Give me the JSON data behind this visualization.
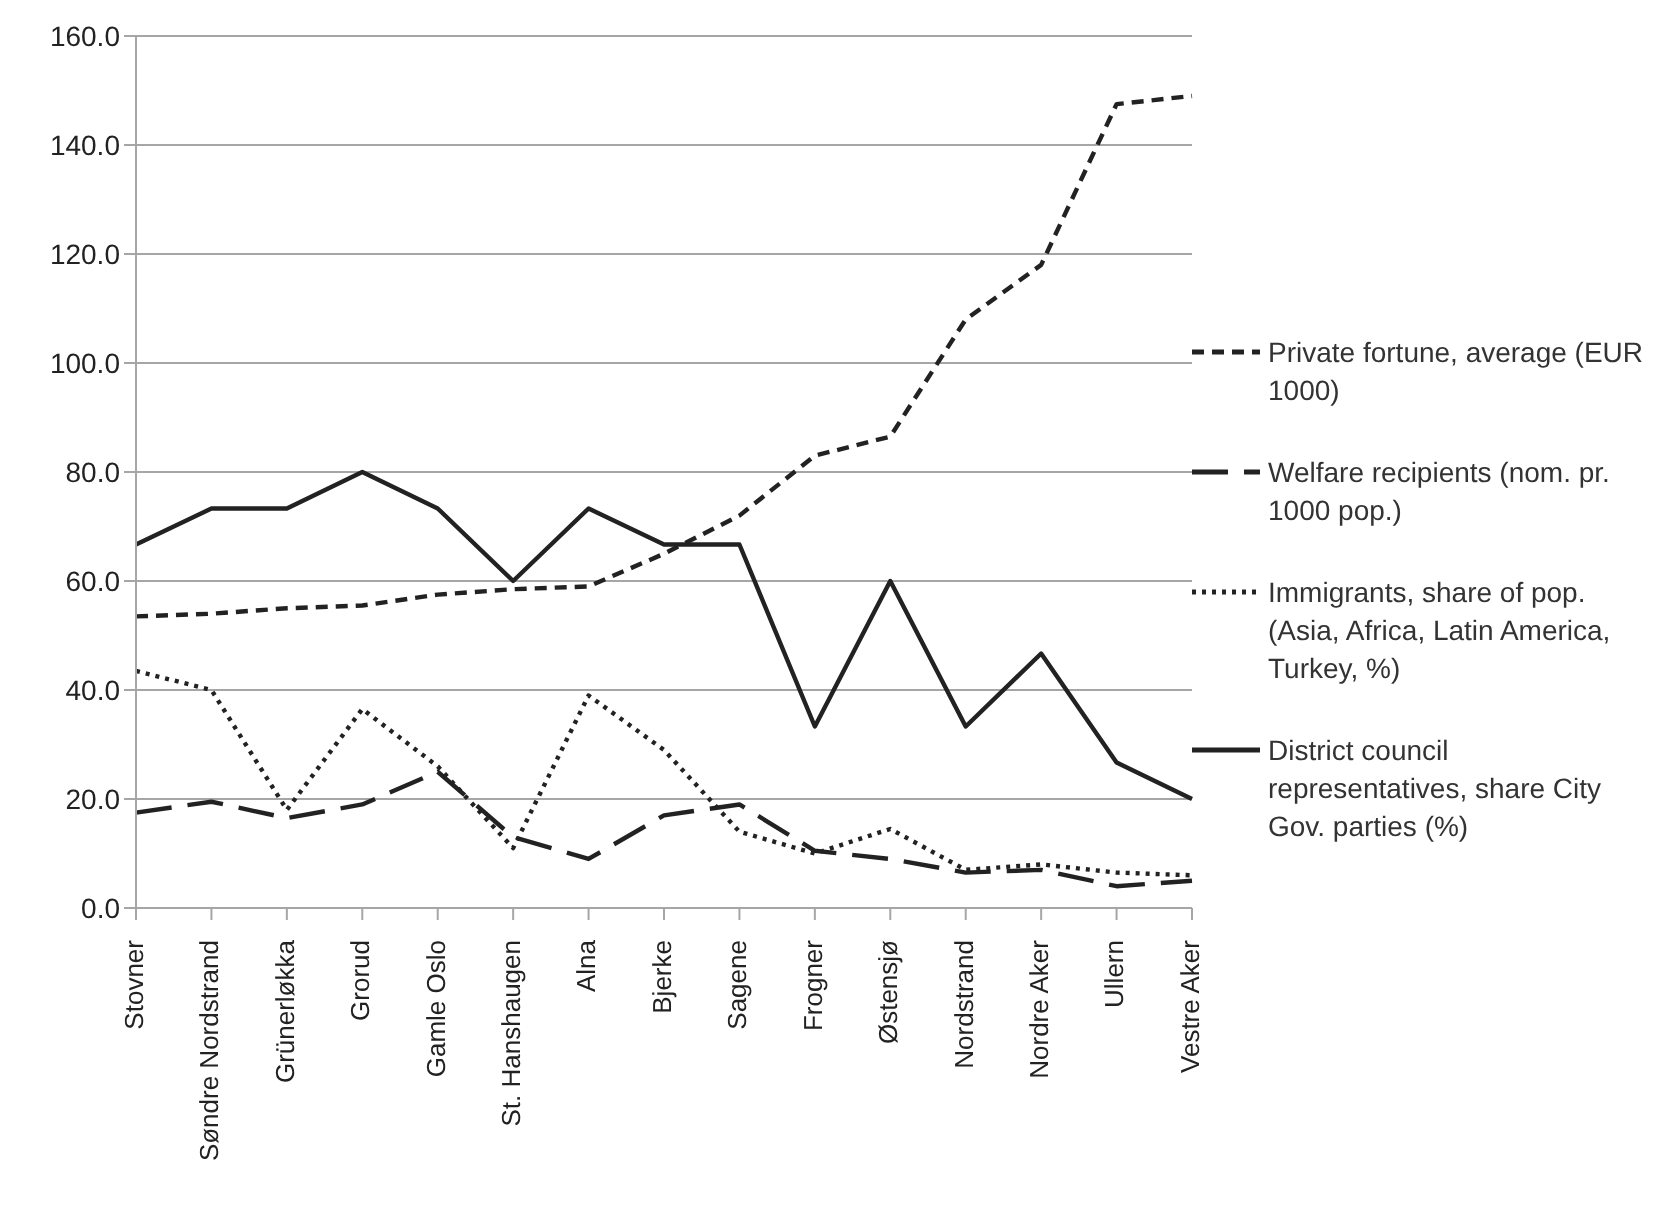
{
  "chart_data": {
    "type": "line",
    "categories": [
      "Stovner",
      "Søndre Nordstrand",
      "Grünerløkka",
      "Grorud",
      "Gamle Oslo",
      "St. Hanshaugen",
      "Alna",
      "Bjerke",
      "Sagene",
      "Frogner",
      "Østensjø",
      "Nordstrand",
      "Nordre Aker",
      "Ullern",
      "Vestre Aker"
    ],
    "series": [
      {
        "name": "Private fortune, average (EUR 1000)",
        "color": "#222222",
        "line_style": "dashed",
        "values": [
          53.5,
          54,
          55,
          55.5,
          57.5,
          58.5,
          59,
          65,
          72,
          83,
          86.5,
          108,
          118,
          147.5,
          149
        ]
      },
      {
        "name": "Welfare recipients (nom. pr. 1000 pop.)",
        "color": "#222222",
        "line_style": "longdash",
        "values": [
          17.5,
          19.5,
          16.5,
          19,
          25,
          13,
          9,
          17,
          19,
          10.5,
          9,
          6.5,
          7,
          4,
          5
        ]
      },
      {
        "name": "Immigrants, share of pop. (Asia, Africa, Latin America, Turkey, %)",
        "color": "#222222",
        "line_style": "dotted",
        "values": [
          43.5,
          40,
          18,
          36.5,
          26,
          11,
          39,
          29,
          14,
          10,
          14.5,
          7,
          8,
          6.5,
          6
        ]
      },
      {
        "name": "District council representatives, share City Gov. parties (%)",
        "color": "#222222",
        "line_style": "solid",
        "values": [
          66.7,
          73.3,
          73.3,
          80,
          73.3,
          60,
          73.3,
          66.7,
          66.7,
          33.3,
          60,
          33.3,
          46.7,
          26.7,
          20
        ]
      }
    ],
    "ylim": [
      0,
      160
    ],
    "yticks": [
      {
        "value": 0,
        "label": "0.0"
      },
      {
        "value": 20,
        "label": "20.0"
      },
      {
        "value": 40,
        "label": "40.0"
      },
      {
        "value": 60,
        "label": "60.0"
      },
      {
        "value": 80,
        "label": "80.0"
      },
      {
        "value": 100,
        "label": "100.0"
      },
      {
        "value": 120,
        "label": "120.0"
      },
      {
        "value": 140,
        "label": "140.0"
      },
      {
        "value": 160,
        "label": "160.0"
      }
    ],
    "grid": "y",
    "legend": "right",
    "marker": "none"
  }
}
